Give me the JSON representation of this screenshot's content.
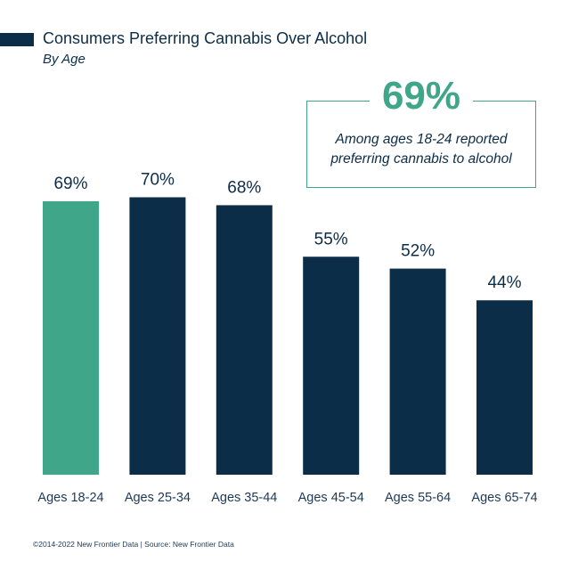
{
  "header": {
    "title": "Consumers Preferring Cannabis Over Alcohol",
    "subtitle": "By Age"
  },
  "callout": {
    "value": "69%",
    "text": "Among ages 18-24 reported preferring cannabis to alcohol"
  },
  "colors": {
    "highlight": "#3fa689",
    "primary": "#0c2d48"
  },
  "chart_data": {
    "type": "bar",
    "categories": [
      "Ages 18-24",
      "Ages 25-34",
      "Ages 35-44",
      "Ages 45-54",
      "Ages 55-64",
      "Ages 65-74"
    ],
    "values": [
      69,
      70,
      68,
      55,
      52,
      44
    ],
    "data_labels": [
      "69%",
      "70%",
      "68%",
      "55%",
      "52%",
      "44%"
    ],
    "highlight_index": 0,
    "ylim": [
      0,
      100
    ],
    "grid": false,
    "legend": "none"
  },
  "footer": {
    "text": "©2014-2022 New Frontier Data | Source: New Frontier Data"
  }
}
